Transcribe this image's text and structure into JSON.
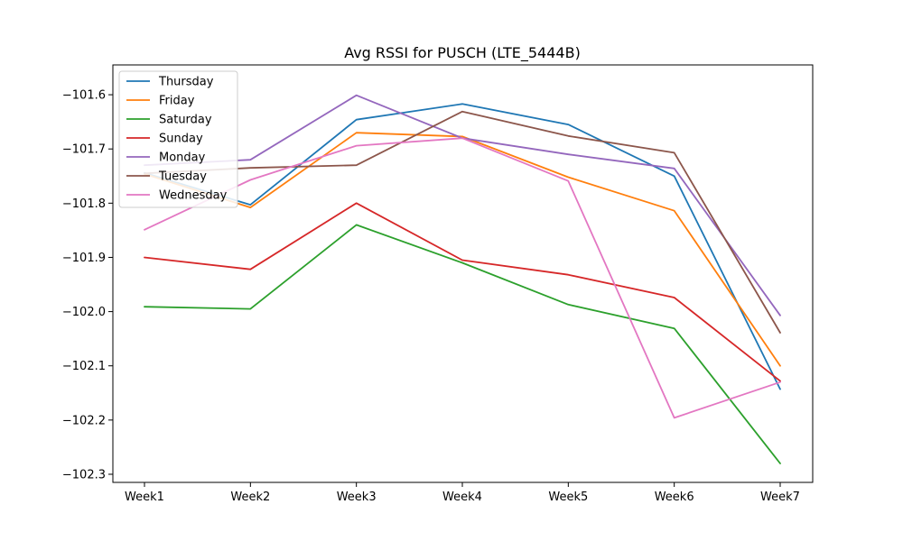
{
  "chart_data": {
    "type": "line",
    "title": "Avg RSSI for PUSCH (LTE_5444B)",
    "xlabel": "",
    "ylabel": "",
    "categories": [
      "Week1",
      "Week2",
      "Week3",
      "Week4",
      "Week5",
      "Week6",
      "Week7"
    ],
    "ylim": [
      -102.315,
      -101.545
    ],
    "yticks": [
      -101.6,
      -101.7,
      -101.8,
      -101.9,
      -102.0,
      -102.1,
      -102.2,
      -102.3
    ],
    "ytick_labels": [
      "−101.6",
      "−101.7",
      "−101.8",
      "−101.9",
      "−102.0",
      "−102.1",
      "−102.2",
      "−102.3"
    ],
    "grid": false,
    "legend": "top-left",
    "series": [
      {
        "name": "Thursday",
        "color": "#1f77b4",
        "values": [
          -101.744,
          -101.803,
          -101.646,
          -101.617,
          -101.655,
          -101.75,
          -102.143
        ]
      },
      {
        "name": "Friday",
        "color": "#ff7f0e",
        "values": [
          -101.746,
          -101.808,
          -101.67,
          -101.677,
          -101.752,
          -101.814,
          -102.1
        ]
      },
      {
        "name": "Saturday",
        "color": "#2ca02c",
        "values": [
          -101.991,
          -101.995,
          -101.84,
          -101.91,
          -101.987,
          -102.031,
          -102.28
        ]
      },
      {
        "name": "Sunday",
        "color": "#d62728",
        "values": [
          -101.9,
          -101.922,
          -101.8,
          -101.905,
          -101.932,
          -101.974,
          -102.128
        ]
      },
      {
        "name": "Monday",
        "color": "#9467bd",
        "values": [
          -101.73,
          -101.72,
          -101.601,
          -101.68,
          -101.71,
          -101.736,
          -102.007
        ]
      },
      {
        "name": "Tuesday",
        "color": "#8c564b",
        "values": [
          -101.745,
          -101.735,
          -101.73,
          -101.631,
          -101.676,
          -101.707,
          -102.039
        ]
      },
      {
        "name": "Wednesday",
        "color": "#e377c2",
        "values": [
          -101.849,
          -101.757,
          -101.694,
          -101.68,
          -101.759,
          -102.196,
          -102.13
        ]
      }
    ]
  }
}
